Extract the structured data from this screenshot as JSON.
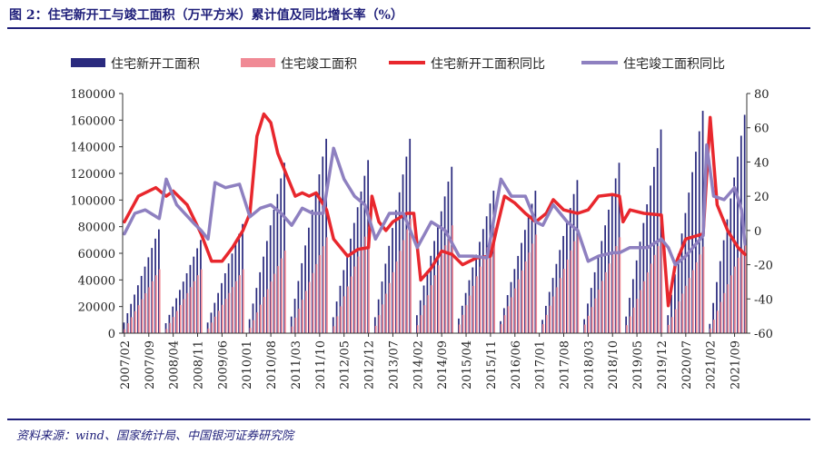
{
  "title": "图 2：住宅新开工与竣工面积（万平方米）累计值及同比增长率（%）",
  "source": "资料来源：wind、国家统计局、中国银河证券研究院",
  "colors": {
    "starts_bar": "#2a2a7e",
    "completions_bar": "#f08a95",
    "starts_yoy": "#e8272d",
    "completions_yoy": "#8e80c0",
    "rule": "#1f1f7a"
  },
  "chart_data": {
    "type": "bar+line",
    "legend_position": "top",
    "grid": false,
    "x_tick_labels": [
      "2007/02",
      "2007/09",
      "2008/04",
      "2008/11",
      "2009/06",
      "2010/01",
      "2010/08",
      "2011/03",
      "2011/10",
      "2012/05",
      "2012/12",
      "2013/07",
      "2014/02",
      "2014/09",
      "2015/04",
      "2015/11",
      "2016/06",
      "2017/01",
      "2017/08",
      "2018/03",
      "2018/10",
      "2019/05",
      "2019/12",
      "2020/07",
      "2021/02",
      "2021/09"
    ],
    "y_left": {
      "range": [
        0,
        180000
      ],
      "ticks": [
        0,
        20000,
        40000,
        60000,
        80000,
        100000,
        120000,
        140000,
        160000,
        180000
      ]
    },
    "y_right": {
      "range": [
        -60,
        80
      ],
      "ticks": [
        -60,
        -40,
        -20,
        0,
        20,
        40,
        60,
        80
      ]
    },
    "series": [
      {
        "name": "住宅新开工面积",
        "kind": "bar",
        "axis": "left",
        "start": "2007/02",
        "annual_dec_values": [
          78000,
          70000,
          82000,
          128000,
          146000,
          130000,
          146000,
          125000,
          107000,
          107000,
          115000,
          128000,
          153000,
          167000,
          164000,
          147000
        ],
        "feb_values": [
          8000,
          7500,
          8000,
          10500,
          12500,
          12000,
          12000,
          13500,
          11000,
          9000,
          10000,
          10500,
          12500,
          13500,
          7000,
          12500
        ]
      },
      {
        "name": "住宅竣工面积",
        "kind": "bar",
        "axis": "left",
        "start": "2007/02",
        "annual_dec_values": [
          48000,
          48000,
          48000,
          62000,
          72000,
          80000,
          86000,
          81000,
          79000,
          74000,
          76000,
          72000,
          72000,
          65000,
          70000,
          72000
        ],
        "feb_values": [
          3000,
          3200,
          3500,
          4000,
          5000,
          5200,
          5500,
          6000,
          6500,
          6800,
          6800,
          6500,
          6000,
          6200,
          3500,
          8500
        ]
      },
      {
        "name": "住宅新开工面积同比",
        "kind": "line",
        "axis": "right",
        "start": "2007/02",
        "key_points": [
          [
            "2007/02",
            5
          ],
          [
            "2007/06",
            20
          ],
          [
            "2007/11",
            25
          ],
          [
            "2008/02",
            20
          ],
          [
            "2008/04",
            23
          ],
          [
            "2008/08",
            15
          ],
          [
            "2008/12",
            -2
          ],
          [
            "2009/03",
            -18
          ],
          [
            "2009/06",
            -18
          ],
          [
            "2009/09",
            -10
          ],
          [
            "2009/12",
            0
          ],
          [
            "2010/02",
            10
          ],
          [
            "2010/04",
            55
          ],
          [
            "2010/06",
            68
          ],
          [
            "2010/08",
            63
          ],
          [
            "2010/10",
            45
          ],
          [
            "2011/01",
            30
          ],
          [
            "2011/03",
            20
          ],
          [
            "2011/05",
            22
          ],
          [
            "2011/07",
            20
          ],
          [
            "2011/09",
            22
          ],
          [
            "2011/12",
            12
          ],
          [
            "2012/02",
            -5
          ],
          [
            "2012/06",
            -15
          ],
          [
            "2012/09",
            -11
          ],
          [
            "2012/12",
            -10
          ],
          [
            "2013/01",
            20
          ],
          [
            "2013/03",
            5
          ],
          [
            "2013/05",
            0
          ],
          [
            "2013/07",
            5
          ],
          [
            "2013/11",
            10
          ],
          [
            "2014/01",
            10
          ],
          [
            "2014/03",
            -29
          ],
          [
            "2014/06",
            -22
          ],
          [
            "2014/09",
            -12
          ],
          [
            "2014/12",
            -14
          ],
          [
            "2015/03",
            -20
          ],
          [
            "2015/07",
            -16
          ],
          [
            "2015/11",
            -15
          ],
          [
            "2016/01",
            3
          ],
          [
            "2016/03",
            20
          ],
          [
            "2016/06",
            16
          ],
          [
            "2016/09",
            10
          ],
          [
            "2016/12",
            5
          ],
          [
            "2017/03",
            10
          ],
          [
            "2017/05",
            18
          ],
          [
            "2017/08",
            12
          ],
          [
            "2017/12",
            10
          ],
          [
            "2018/03",
            12
          ],
          [
            "2018/06",
            20
          ],
          [
            "2018/10",
            21
          ],
          [
            "2018/12",
            20
          ],
          [
            "2019/01",
            5
          ],
          [
            "2019/03",
            12
          ],
          [
            "2019/07",
            10
          ],
          [
            "2019/12",
            9
          ],
          [
            "2020/02",
            -44
          ],
          [
            "2020/04",
            -20
          ],
          [
            "2020/07",
            -5
          ],
          [
            "2020/12",
            -2
          ],
          [
            "2021/02",
            66
          ],
          [
            "2021/04",
            15
          ],
          [
            "2021/07",
            0
          ],
          [
            "2021/10",
            -10
          ],
          [
            "2021/12",
            -14
          ]
        ]
      },
      {
        "name": "住宅竣工面积同比",
        "kind": "line",
        "axis": "right",
        "start": "2007/02",
        "key_points": [
          [
            "2007/02",
            -2
          ],
          [
            "2007/05",
            10
          ],
          [
            "2007/08",
            12
          ],
          [
            "2007/12",
            7
          ],
          [
            "2008/02",
            30
          ],
          [
            "2008/05",
            15
          ],
          [
            "2008/10",
            4
          ],
          [
            "2008/12",
            0
          ],
          [
            "2009/02",
            -5
          ],
          [
            "2009/04",
            28
          ],
          [
            "2009/07",
            25
          ],
          [
            "2009/11",
            27
          ],
          [
            "2010/02",
            8
          ],
          [
            "2010/05",
            13
          ],
          [
            "2010/08",
            15
          ],
          [
            "2010/11",
            10
          ],
          [
            "2011/02",
            3
          ],
          [
            "2011/05",
            13
          ],
          [
            "2011/08",
            10
          ],
          [
            "2011/11",
            10
          ],
          [
            "2012/02",
            48
          ],
          [
            "2012/05",
            30
          ],
          [
            "2012/08",
            20
          ],
          [
            "2012/11",
            15
          ],
          [
            "2013/02",
            -5
          ],
          [
            "2013/06",
            10
          ],
          [
            "2013/10",
            10
          ],
          [
            "2014/02",
            -10
          ],
          [
            "2014/06",
            5
          ],
          [
            "2014/10",
            0
          ],
          [
            "2015/02",
            -15
          ],
          [
            "2015/06",
            -15
          ],
          [
            "2015/10",
            -16
          ],
          [
            "2016/02",
            30
          ],
          [
            "2016/05",
            20
          ],
          [
            "2016/09",
            20
          ],
          [
            "2016/12",
            5
          ],
          [
            "2017/02",
            3
          ],
          [
            "2017/05",
            15
          ],
          [
            "2017/09",
            5
          ],
          [
            "2017/12",
            0
          ],
          [
            "2018/03",
            -18
          ],
          [
            "2018/06",
            -15
          ],
          [
            "2018/10",
            -13
          ],
          [
            "2018/12",
            -13
          ],
          [
            "2019/03",
            -10
          ],
          [
            "2019/08",
            -10
          ],
          [
            "2019/12",
            -5
          ],
          [
            "2020/02",
            -10
          ],
          [
            "2020/04",
            -20
          ],
          [
            "2020/07",
            -15
          ],
          [
            "2020/12",
            -3
          ],
          [
            "2021/01",
            50
          ],
          [
            "2021/03",
            20
          ],
          [
            "2021/06",
            18
          ],
          [
            "2021/09",
            25
          ],
          [
            "2021/11",
            12
          ],
          [
            "2021/12",
            -8
          ]
        ]
      }
    ]
  }
}
